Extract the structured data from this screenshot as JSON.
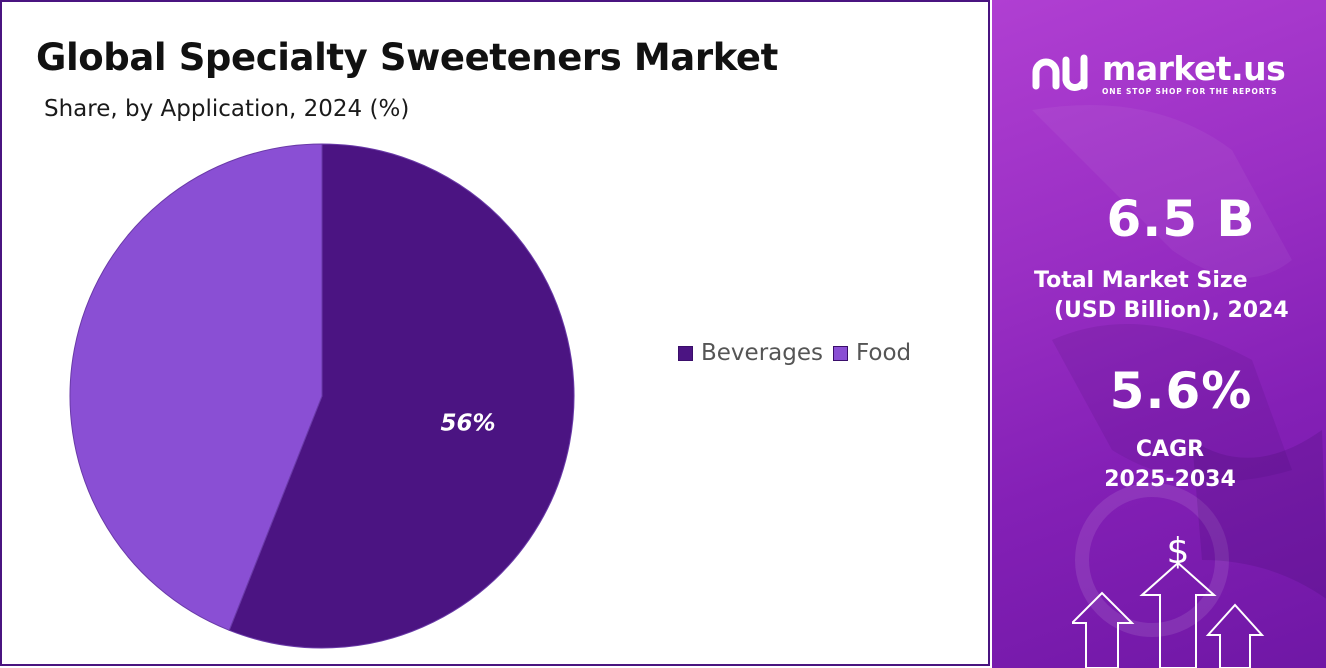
{
  "header": {
    "title": "Global Specialty Sweeteners Market",
    "subtitle": "Share, by Application, 2024 (%)"
  },
  "chart_data": {
    "type": "pie",
    "title": "Global Specialty Sweeteners Market",
    "subtitle": "Share, by Application, 2024 (%)",
    "categories": [
      "Beverages",
      "Food"
    ],
    "values": [
      56,
      44
    ],
    "data_labels": [
      "56%",
      ""
    ],
    "colors": [
      "#4b1482",
      "#8a4fd4"
    ],
    "legend_position": "right"
  },
  "sidebar": {
    "brand_name": "market.us",
    "brand_tagline": "ONE STOP SHOP FOR THE REPORTS",
    "market_size_value": "6.5 B",
    "market_size_label_line1": "Total Market Size",
    "market_size_label_line2": "(USD Billion), 2024",
    "cagr_value": "5.6%",
    "cagr_label_line1": "CAGR",
    "cagr_label_line2": "2025-2034",
    "currency_symbol": "$",
    "background_color": "#8a2bbc",
    "logo_icon": "market-us-logo-icon",
    "arrow_icon": "up-arrow-icon"
  }
}
